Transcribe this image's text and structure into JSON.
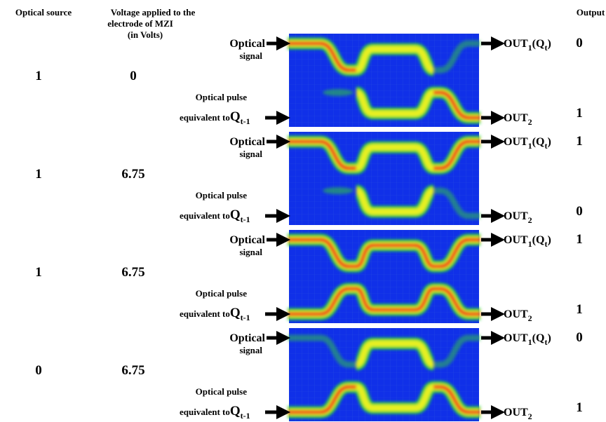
{
  "header": {
    "source": "Optical source",
    "voltage": [
      "Voltage applied to the",
      "electrode of MZI",
      "(in Volts)"
    ],
    "output": "Output"
  },
  "labels": {
    "signal": [
      "Optical",
      "signal"
    ],
    "pulse": {
      "line1": "Optical pulse",
      "line2": "equivalent to",
      "q": "Q",
      "q_sub": "t-1"
    },
    "out1": {
      "main": "OUT",
      "sub": "1",
      "q": "(Q",
      "q_sub": "t",
      "close": ")"
    },
    "out2": {
      "main": "OUT",
      "sub": "2"
    }
  },
  "rows": [
    {
      "source": 1,
      "voltage": 0,
      "out1": 0,
      "out2": 1
    },
    {
      "source": 1,
      "voltage": 6.75,
      "out1": 1,
      "out2": 0
    },
    {
      "source": 1,
      "voltage": 6.75,
      "out1": 1,
      "out2": 1
    },
    {
      "source": 0,
      "voltage": 6.75,
      "out1": 0,
      "out2": 1
    }
  ]
}
